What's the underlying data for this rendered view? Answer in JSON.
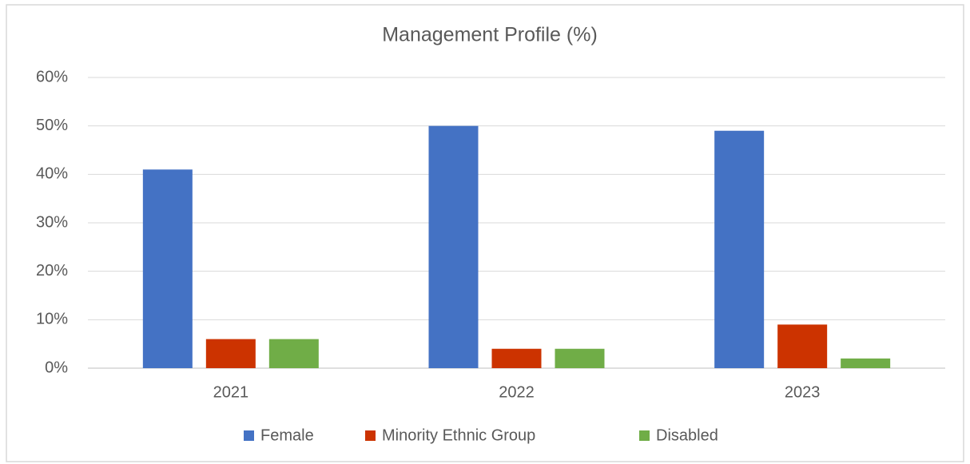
{
  "chart_data": {
    "type": "bar",
    "title": "Management Profile (%)",
    "categories": [
      "2021",
      "2022",
      "2023"
    ],
    "series": [
      {
        "name": "Female",
        "color": "#4472c4",
        "values": [
          41,
          50,
          49
        ]
      },
      {
        "name": "Minority Ethnic Group",
        "color": "#cc3300",
        "values": [
          6,
          4,
          9
        ]
      },
      {
        "name": "Disabled",
        "color": "#70ad47",
        "values": [
          6,
          4,
          2
        ]
      }
    ],
    "ylim": [
      0,
      60
    ],
    "yticks": [
      {
        "value": 0,
        "label": "0%"
      },
      {
        "value": 10,
        "label": "10%"
      },
      {
        "value": 20,
        "label": "20%"
      },
      {
        "value": 30,
        "label": "30%"
      },
      {
        "value": 40,
        "label": "40%"
      },
      {
        "value": 50,
        "label": "50%"
      },
      {
        "value": 60,
        "label": "60%"
      }
    ],
    "grid": true,
    "legend": "bottom"
  }
}
